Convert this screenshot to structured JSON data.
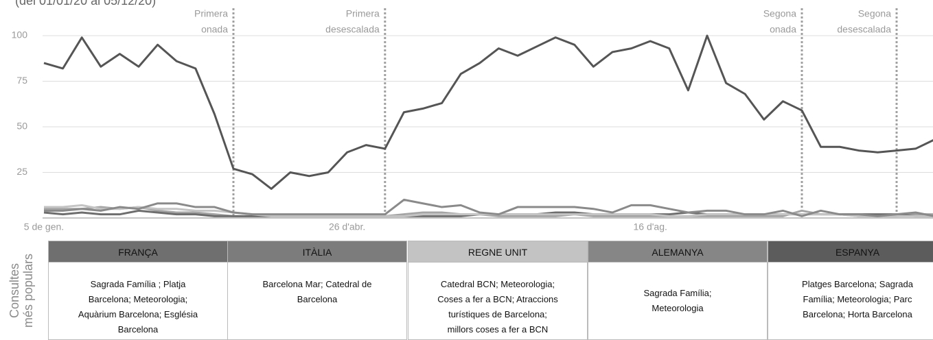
{
  "chart_data": {
    "type": "line",
    "subtitle": "(del 01/01/20 al 05/12/20)",
    "categories": [
      "5 de gen.",
      null,
      null,
      null,
      null,
      null,
      null,
      null,
      null,
      null,
      null,
      null,
      null,
      null,
      null,
      null,
      "26 d'abr.",
      null,
      null,
      null,
      null,
      null,
      null,
      null,
      null,
      null,
      null,
      null,
      null,
      null,
      null,
      null,
      "16 d'ag.",
      null,
      null,
      null,
      null,
      null,
      null,
      null,
      null,
      null,
      null,
      null,
      null,
      null,
      null,
      null
    ],
    "series": [
      {
        "color": "#555555",
        "values": [
          85,
          82,
          99,
          83,
          90,
          83,
          95,
          86,
          82,
          57,
          27,
          24,
          16,
          25,
          23,
          25,
          36,
          40,
          38,
          58,
          60,
          63,
          79,
          85,
          93,
          89,
          94,
          99,
          95,
          83,
          91,
          93,
          97,
          93,
          70,
          100,
          74,
          68,
          54,
          64,
          59,
          39,
          39,
          37,
          36,
          37,
          38,
          43
        ]
      },
      {
        "color": "#8a8a8a",
        "values": [
          4,
          4,
          5,
          4,
          6,
          5,
          8,
          8,
          6,
          6,
          3,
          2,
          2,
          2,
          2,
          2,
          2,
          2,
          2,
          10,
          8,
          6,
          7,
          3,
          2,
          6,
          6,
          6,
          6,
          5,
          3,
          7,
          7,
          5,
          3,
          4,
          4,
          2,
          2,
          4,
          1,
          4,
          2,
          2,
          1,
          2,
          3,
          1
        ]
      },
      {
        "color": "#c4c4c4",
        "values": [
          6,
          6,
          7,
          5,
          5,
          6,
          5,
          5,
          4,
          4,
          3,
          2,
          1,
          1,
          1,
          1,
          1,
          1,
          1,
          1,
          2,
          2,
          2,
          2,
          2,
          2,
          2,
          2,
          2,
          2,
          2,
          2,
          2,
          1,
          1,
          2,
          2,
          2,
          2,
          2,
          2,
          2,
          2,
          1,
          1,
          1,
          1,
          1
        ]
      },
      {
        "color": "#6e6e6e",
        "values": [
          3,
          2,
          3,
          2,
          2,
          4,
          3,
          2,
          2,
          1,
          1,
          1,
          1,
          1,
          1,
          1,
          1,
          1,
          1,
          1,
          1,
          1,
          1,
          2,
          2,
          2,
          2,
          3,
          3,
          2,
          2,
          2,
          2,
          2,
          3,
          2,
          2,
          2,
          2,
          2,
          2,
          2,
          2,
          2,
          2,
          2,
          1,
          1
        ]
      },
      {
        "color": "#a5a5a5",
        "values": [
          5,
          5,
          5,
          6,
          5,
          6,
          4,
          3,
          3,
          2,
          1,
          1,
          1,
          1,
          1,
          1,
          1,
          1,
          1,
          2,
          3,
          3,
          2,
          2,
          1,
          1,
          1,
          1,
          2,
          1,
          1,
          1,
          1,
          1,
          1,
          1,
          1,
          1,
          1,
          1,
          4,
          2,
          2,
          1,
          1,
          1,
          2,
          2
        ]
      }
    ],
    "ylim": [
      0,
      110
    ],
    "yticks": [
      25,
      50,
      75,
      100
    ],
    "grid": true,
    "annotations": [
      {
        "lines": [
          "Primera",
          "onada"
        ],
        "x": 10
      },
      {
        "lines": [
          "Primera",
          "desescalada"
        ],
        "x": 18
      },
      {
        "lines": [
          "Segona",
          "onada"
        ],
        "x": 40
      },
      {
        "lines": [
          "Segona",
          "desescalada"
        ],
        "x": 45
      }
    ]
  },
  "table": {
    "row_label": [
      "Consultes",
      "més populars"
    ],
    "columns": [
      {
        "header": "FRANÇA",
        "lines": [
          "Sagrada Família ; Platja",
          "Barcelona; Meteorologia;",
          "Aquàrium Barcelona; Església",
          "Barcelona"
        ]
      },
      {
        "header": "ITÀLIA",
        "lines": [
          "Barcelona Mar; Catedral de",
          "Barcelona"
        ]
      },
      {
        "header": "REGNE UNIT",
        "lines": [
          "Catedral BCN; Meteorologia;",
          "Coses a fer a BCN; Atraccions",
          "turístiques de Barcelona;",
          "millors coses a fer a BCN"
        ]
      },
      {
        "header": "ALEMANYA",
        "lines": [
          "Sagrada Família;",
          "Meteorologia"
        ]
      },
      {
        "header": "ESPANYA",
        "lines": [
          "Platges Barcelona; Sagrada",
          "Família; Meteorologia; Parc",
          "Barcelona; Horta Barcelona"
        ]
      }
    ]
  }
}
